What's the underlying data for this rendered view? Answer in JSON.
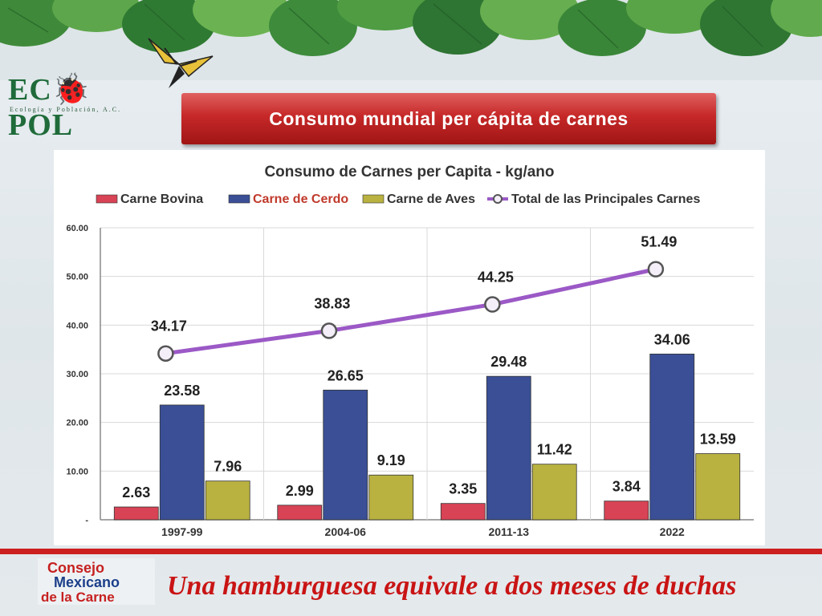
{
  "logo": {
    "name": "EC🐞POL",
    "sub": "Ecología y Población, A.C."
  },
  "banner": {
    "title": "Consumo mundial per cápita de carnes"
  },
  "chart_data": {
    "type": "bar",
    "title": "Consumo de Carnes per Capita - kg/ano",
    "categories": [
      "1997-99",
      "2004-06",
      "2011-13",
      "2022"
    ],
    "series": [
      {
        "name": "Carne Bovina",
        "type": "bar",
        "color": "#d84355",
        "values": [
          2.63,
          2.99,
          3.35,
          3.84
        ]
      },
      {
        "name": "Carne de Cerdo",
        "type": "bar",
        "color": "#3a4f96",
        "values": [
          23.58,
          26.65,
          29.48,
          34.06
        ]
      },
      {
        "name": "Carne de Aves",
        "type": "bar",
        "color": "#b9b241",
        "values": [
          7.96,
          9.19,
          11.42,
          13.59
        ]
      },
      {
        "name": "Total de las Principales Carnes",
        "type": "line",
        "color": "#9b59c6",
        "values": [
          34.17,
          38.83,
          44.25,
          51.49
        ]
      }
    ],
    "y_ticks": [
      "-",
      "10.00",
      "20.00",
      "30.00",
      "40.00",
      "50.00",
      "60.00"
    ],
    "ylim": [
      0,
      60
    ],
    "legend_position": "top",
    "grid": true
  },
  "footer": {
    "logo_lines": [
      "Consejo",
      "Mexicano",
      "de la Carne"
    ],
    "text": "Una hamburguesa equivale a dos meses de duchas"
  }
}
